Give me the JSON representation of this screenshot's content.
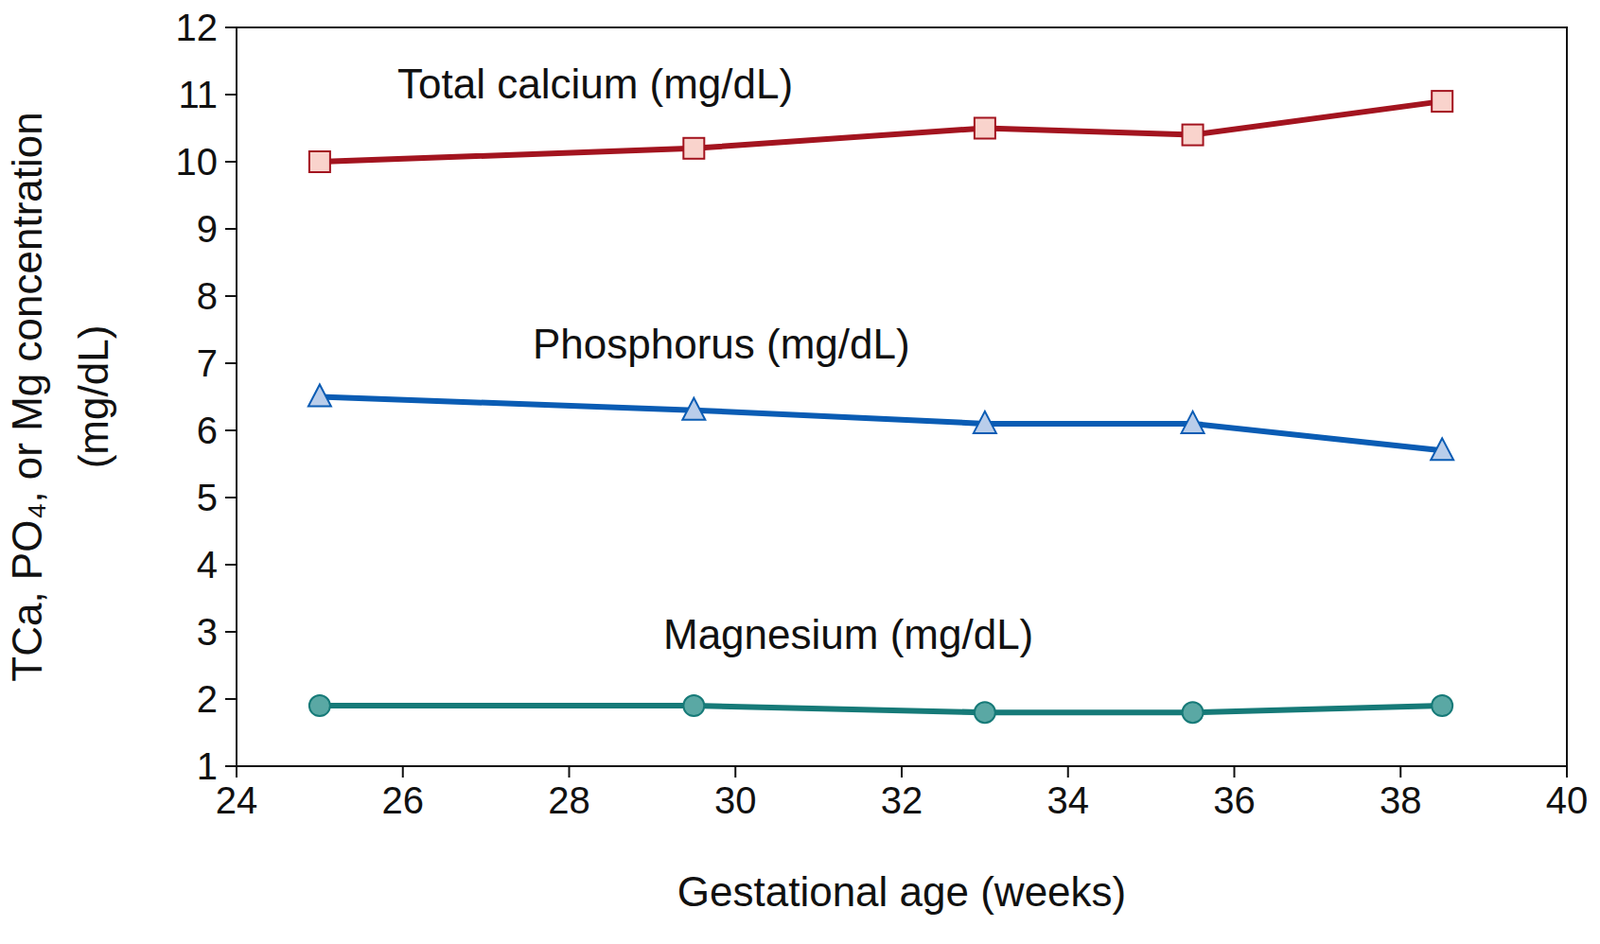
{
  "chart_data": {
    "type": "line",
    "x_label": "Gestational age (weeks)",
    "y_label": [
      "TCa, PO₄, or Mg concentration",
      "(mg/dL)"
    ],
    "x": [
      25,
      29.5,
      33,
      35.5,
      38.5
    ],
    "xlim": [
      24,
      40
    ],
    "xticks": [
      24,
      26,
      28,
      30,
      32,
      34,
      36,
      38,
      40
    ],
    "ylim": [
      1,
      12
    ],
    "yticks": [
      1,
      2,
      3,
      4,
      5,
      6,
      7,
      8,
      9,
      10,
      11,
      12
    ],
    "grid": false,
    "series": [
      {
        "name": "Total calcium (mg/dL)",
        "color": "#a3141f",
        "marker": "square",
        "values": [
          10.0,
          10.2,
          10.5,
          10.4,
          10.9
        ]
      },
      {
        "name": "Phosphorus (mg/dL)",
        "color": "#0a5cb4",
        "marker": "triangle",
        "values": [
          6.5,
          6.3,
          6.1,
          6.1,
          5.7
        ]
      },
      {
        "name": "Magnesium (mg/dL)",
        "color": "#167a78",
        "marker": "circle",
        "values": [
          1.9,
          1.9,
          1.8,
          1.8,
          1.9
        ]
      }
    ]
  }
}
